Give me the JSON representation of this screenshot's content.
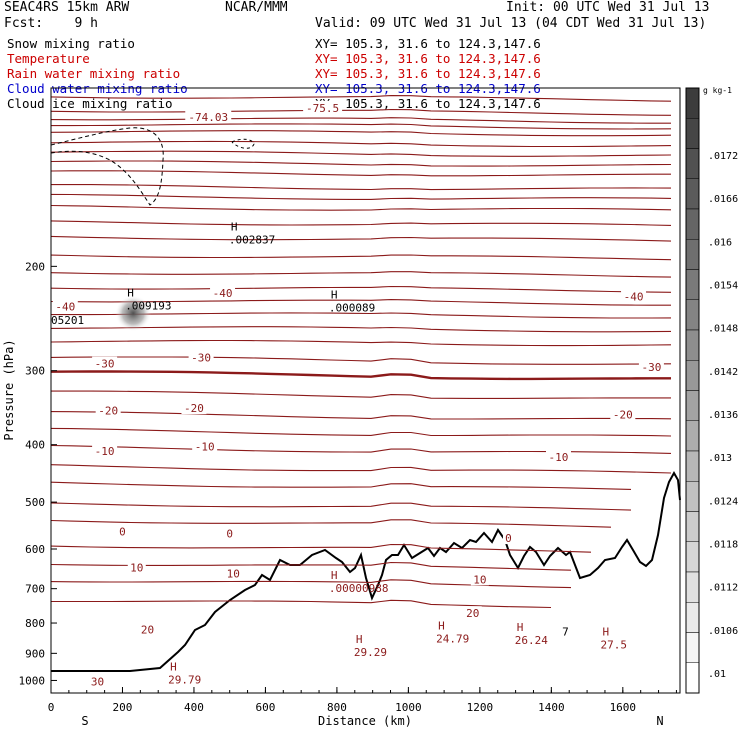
{
  "header": {
    "model": "SEAC4RS 15km ARW",
    "org": "NCAR/MMM",
    "init": "Init: 00 UTC Wed 31 Jul 13",
    "fcst": "Fcst:    9 h",
    "valid": "Valid: 09 UTC Wed 31 Jul 13 (04 CDT Wed 31 Jul 13)"
  },
  "legend": [
    {
      "name": "Snow mixing ratio",
      "xy": "XY= 105.3, 31.6 to 124.3,147.6",
      "color": "#000000"
    },
    {
      "name": "Temperature",
      "xy": "XY= 105.3, 31.6 to 124.3,147.6",
      "color": "#cc0000"
    },
    {
      "name": "Rain water mixing ratio",
      "xy": "XY= 105.3, 31.6 to 124.3,147.6",
      "color": "#cc0000"
    },
    {
      "name": "Cloud water mixing ratio",
      "xy": "XY= 105.3, 31.6 to 124.3,147.6",
      "color": "#0000cc"
    },
    {
      "name": "Cloud ice mixing ratio",
      "xy": "XY= 105.3, 31.6 to 124.3,147.6",
      "color": "#000000"
    }
  ],
  "chart_data": {
    "type": "cross-section",
    "xlabel": "Distance (km)",
    "ylabel": "Pressure (hPa)",
    "xlim": [
      0,
      1760
    ],
    "ylim": [
      1050,
      100
    ],
    "y_log": true,
    "x_ticks": [
      "0",
      "200",
      "400",
      "600",
      "800",
      "1000",
      "1200",
      "1400",
      "1600"
    ],
    "y_ticks": [
      "200",
      "300",
      "400",
      "500",
      "600",
      "700",
      "800",
      "900",
      "1000"
    ],
    "direction_left": "S",
    "direction_right": "N",
    "temperature_labels": [
      "-40",
      "-40",
      "-40",
      "-30",
      "-30",
      "-30",
      "-20",
      "-20",
      "-20",
      "-10",
      "-10",
      "-10",
      "0",
      "0",
      "0",
      "10",
      "10",
      "10",
      "20",
      "20",
      "30",
      "-74.03",
      "-75.5"
    ],
    "temperature_label_points": [
      [
        40,
        234
      ],
      [
        480,
        222
      ],
      [
        1630,
        225
      ],
      [
        150,
        292
      ],
      [
        420,
        285
      ],
      [
        1680,
        296
      ],
      [
        160,
        350
      ],
      [
        400,
        347
      ],
      [
        1600,
        356
      ],
      [
        150,
        410
      ],
      [
        430,
        403
      ],
      [
        1420,
        420
      ],
      [
        200,
        560
      ],
      [
        500,
        565
      ],
      [
        1280,
        575
      ],
      [
        240,
        645
      ],
      [
        510,
        660
      ],
      [
        1200,
        675
      ],
      [
        270,
        820
      ],
      [
        1180,
        770
      ],
      [
        130,
        1005
      ],
      [
        440,
        112
      ],
      [
        760,
        108
      ]
    ],
    "temperature_label_values": [
      -40,
      -40,
      -40,
      -30,
      -30,
      -30,
      -20,
      -20,
      -20,
      -10,
      -10,
      -10,
      0,
      0,
      0,
      10,
      10,
      10,
      20,
      20,
      30,
      -74.03,
      -75.5
    ],
    "maxima": [
      {
        "label": "H",
        "value": ".009193",
        "x": 230,
        "p": 230
      },
      {
        "label": "H",
        "value": ".002837",
        "x": 520,
        "p": 178
      },
      {
        "label": "H",
        "value": ".000089",
        "x": 800,
        "p": 232
      },
      {
        "label": "H",
        "value": ".00000988",
        "x": 800,
        "p": 690
      },
      {
        "label": "H",
        "value": "29.79",
        "x": 350,
        "p": 985
      },
      {
        "label": "H",
        "value": "29.29",
        "x": 870,
        "p": 885
      },
      {
        "label": "H",
        "value": "24.79",
        "x": 1100,
        "p": 840
      },
      {
        "label": "H",
        "value": "26.24",
        "x": 1320,
        "p": 845
      },
      {
        "label": "H",
        "value": "27.5",
        "x": 1560,
        "p": 860
      }
    ],
    "other_labels": [
      {
        "text": "05201",
        "x": 0,
        "p": 250
      },
      {
        "text": "7",
        "x": 1430,
        "p": 840
      }
    ],
    "colorbar": {
      "unit": "g kg-1",
      "ticks": [
        ".0172",
        ".0166",
        ".016",
        ".0154",
        ".0148",
        ".0142",
        ".0136",
        ".013",
        ".0124",
        ".0118",
        ".0112",
        ".0106",
        ".01"
      ]
    }
  }
}
